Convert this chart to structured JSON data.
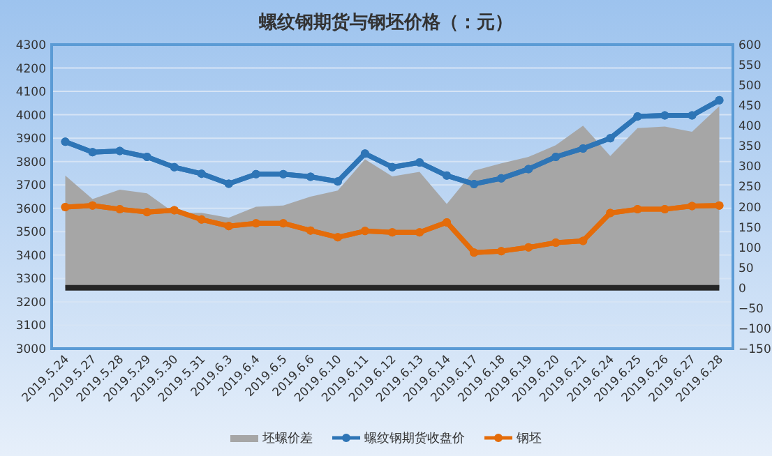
{
  "chart_data": {
    "type": "line",
    "title": "螺纹钢期货与钢坯价格（：元）",
    "categories": [
      "2019.5.24",
      "2019.5.27",
      "2019.5.28",
      "2019.5.29",
      "2019.5.30",
      "2019.5.31",
      "2019.6.3",
      "2019.6.4",
      "2019.6.5",
      "2019.6.6",
      "2019.6.10",
      "2019.6.11",
      "2019.6.12",
      "2019.6.13",
      "2019.6.14",
      "2019.6.17",
      "2019.6.18",
      "2019.6.19",
      "2019.6.20",
      "2019.6.21",
      "2019.6.24",
      "2019.6.25",
      "2019.6.26",
      "2019.6.27",
      "2019.6.28"
    ],
    "series": [
      {
        "name": "坯螺价差",
        "type": "area",
        "axis": "y2",
        "marker": "none",
        "color": "#a6a6a6",
        "values": [
          277,
          219,
          242,
          233,
          185,
          185,
          173,
          200,
          203,
          225,
          240,
          317,
          275,
          286,
          207,
          289,
          307,
          323,
          352,
          400,
          325,
          394,
          398,
          385,
          448
        ]
      },
      {
        "name": "螺纹钢期货收盘价",
        "color": "#2e75b6",
        "values": [
          3885,
          3840,
          3845,
          3820,
          3776,
          3748,
          3705,
          3746,
          3746,
          3735,
          3715,
          3834,
          3776,
          3796,
          3740,
          3704,
          3728,
          3768,
          3820,
          3856,
          3900,
          3993,
          3997,
          3997,
          4062
        ]
      },
      {
        "name": "钢坯",
        "color": "#e46c0a",
        "values": [
          3605,
          3612,
          3596,
          3584,
          3592,
          3552,
          3524,
          3536,
          3536,
          3505,
          3476,
          3503,
          3497,
          3497,
          3540,
          3411,
          3417,
          3433,
          3453,
          3461,
          3580,
          3596,
          3596,
          3610,
          3612
        ]
      }
    ],
    "ylim": [
      3000,
      4300
    ],
    "yticks": [
      3000,
      3100,
      3200,
      3300,
      3400,
      3500,
      3600,
      3700,
      3800,
      3900,
      4000,
      4100,
      4200,
      4300
    ],
    "y2lim": [
      -150,
      600
    ],
    "y2ticks": [
      -150,
      -100,
      -50,
      0,
      50,
      100,
      150,
      200,
      250,
      300,
      350,
      400,
      450,
      500,
      550,
      600
    ],
    "ref_lines": [
      {
        "axis": "y2",
        "value": 0,
        "color": "#262626"
      }
    ],
    "grid": "y",
    "legend": "bottom",
    "marker": "circle",
    "line_style": "solid"
  }
}
